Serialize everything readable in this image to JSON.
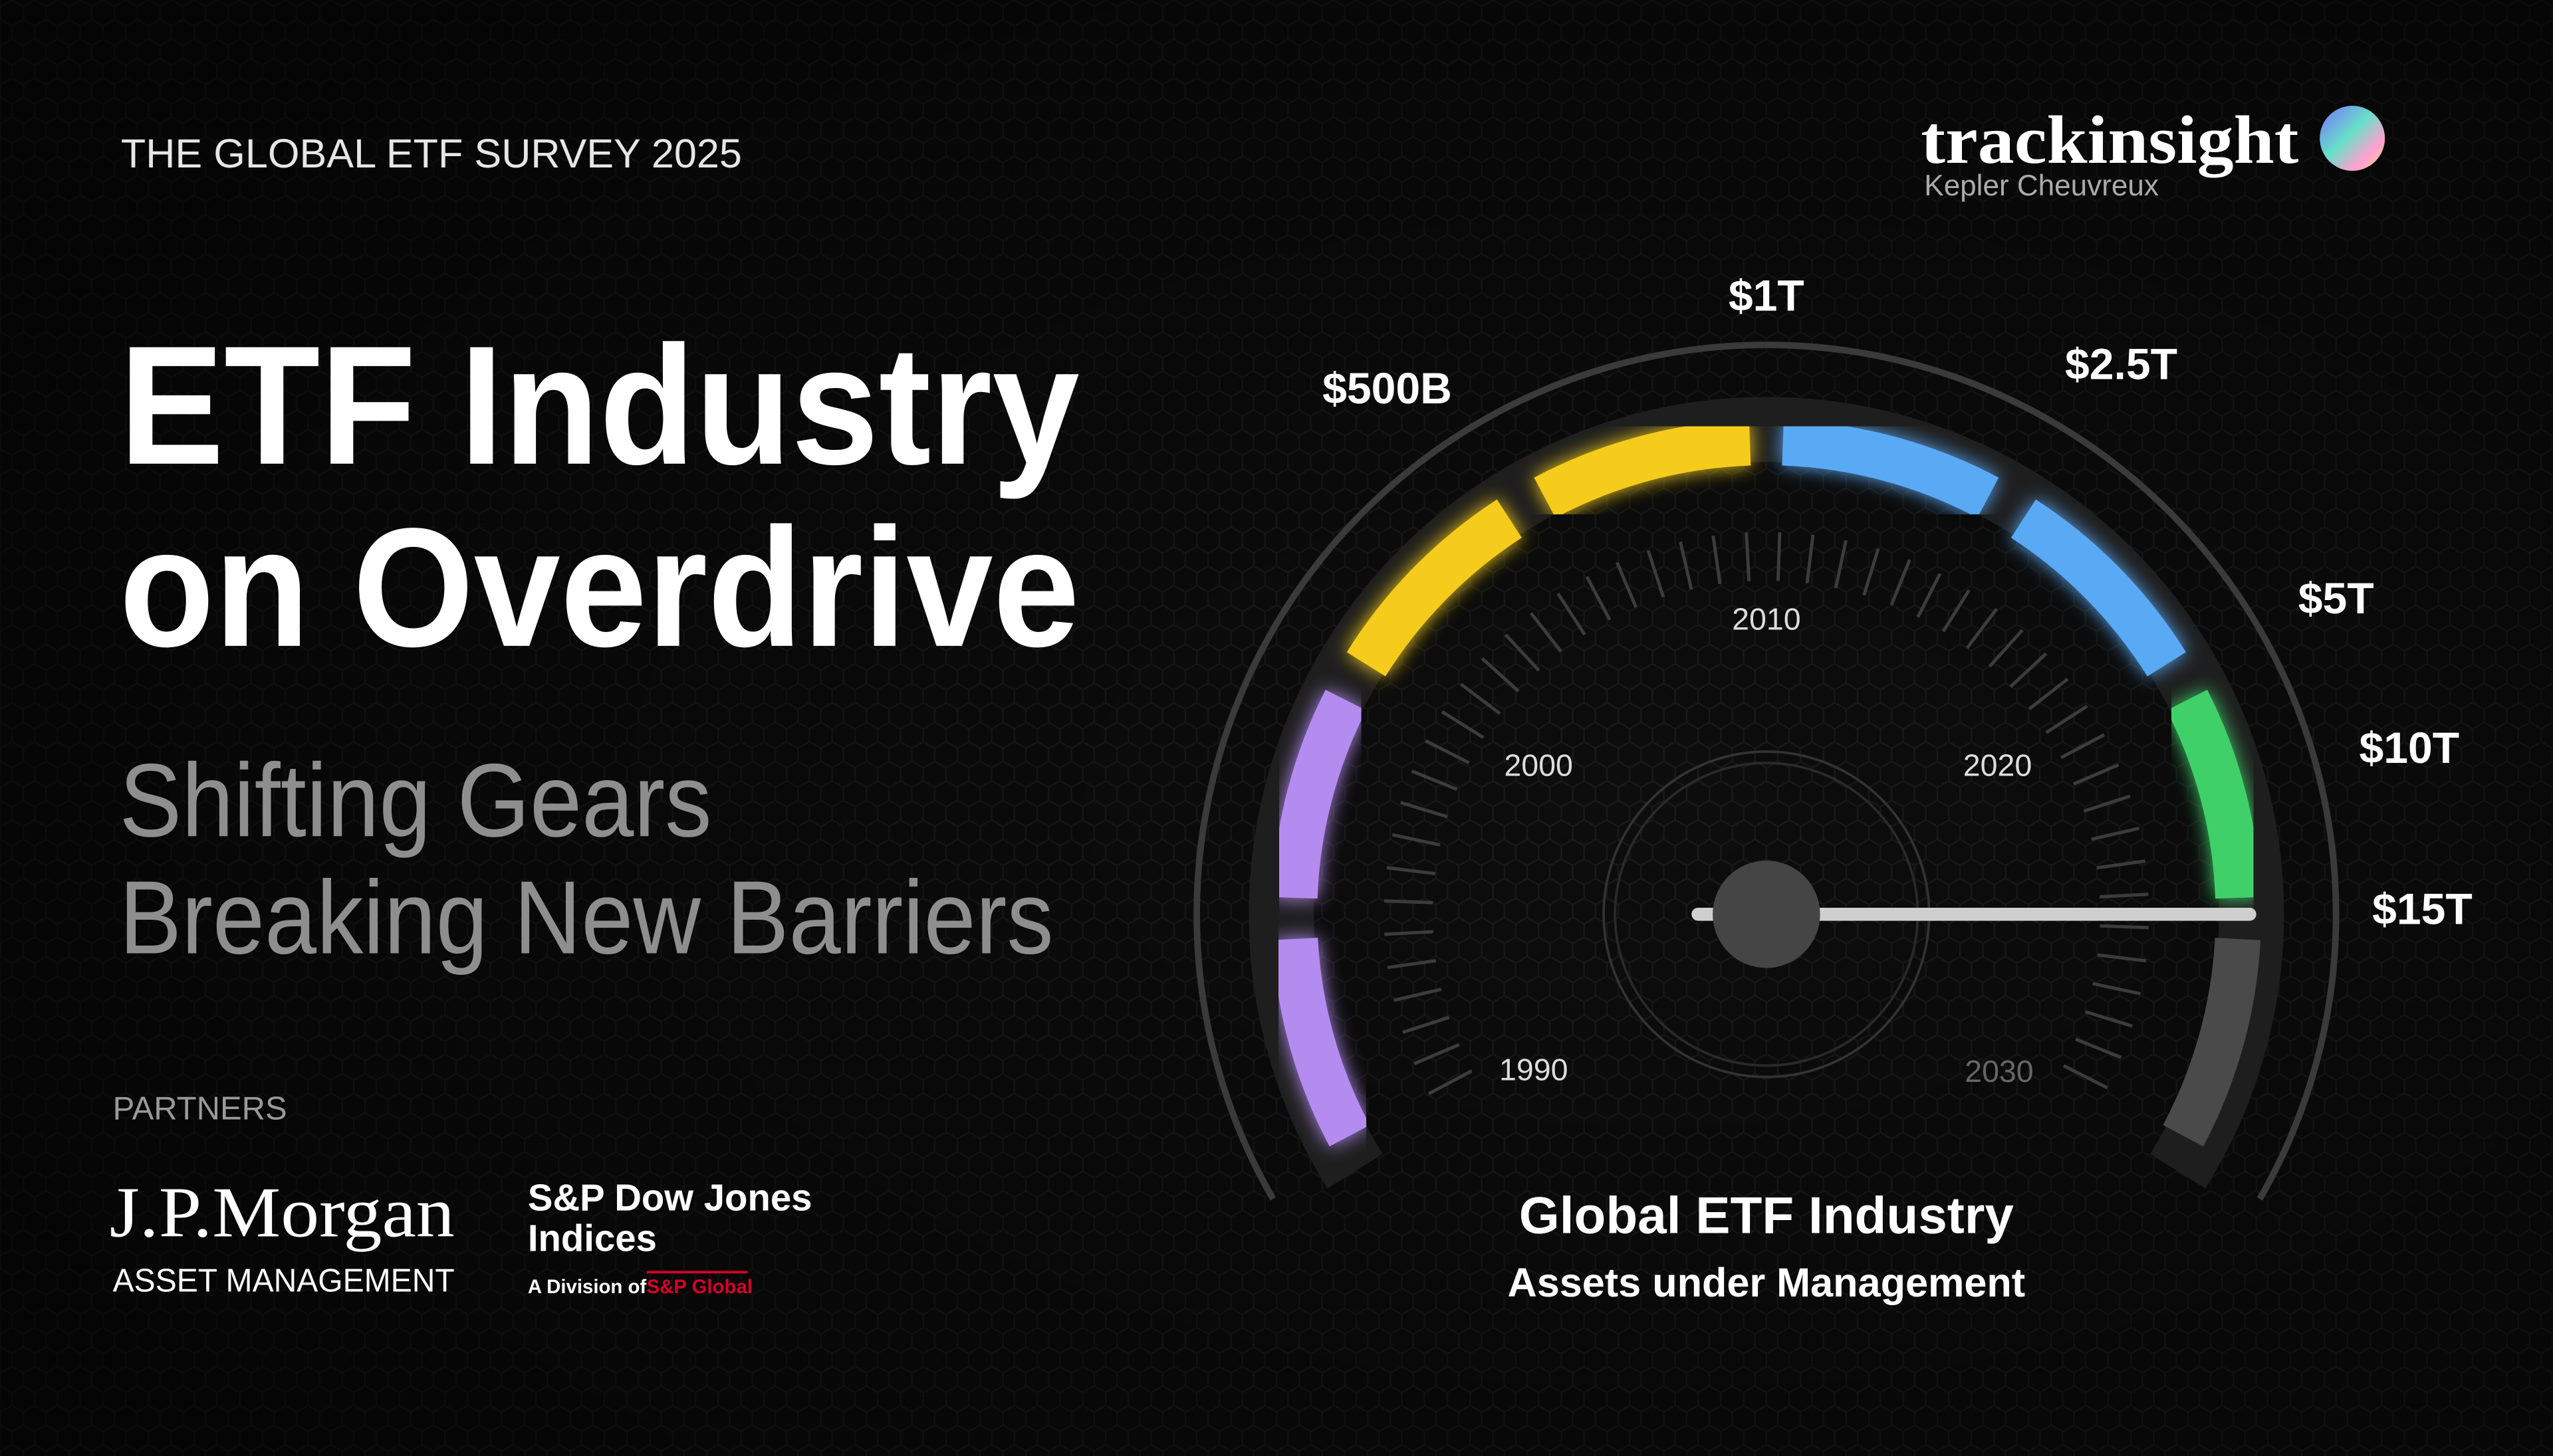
{
  "header": {
    "survey": "THE GLOBAL ETF SURVEY 2025",
    "brand": "trackinsight",
    "brand_sub": "Kepler Cheuvreux"
  },
  "title": {
    "line1": "ETF Industry",
    "line2": "on Overdrive"
  },
  "subtitle": {
    "line1": "Shifting Gears",
    "line2": "Breaking New Barriers"
  },
  "partners": {
    "label": "PARTNERS",
    "jpmorgan": "J.P.Morgan",
    "jpmorgan_sub": "ASSET MANAGEMENT",
    "spdji_line1": "S&P Dow Jones",
    "spdji_line2": "Indices",
    "spdji_division": "A Division of",
    "spglobal": "S&P Global"
  },
  "gauge": {
    "value_labels": [
      "$500B",
      "$1T",
      "$2.5T",
      "$5T",
      "$10T",
      "$15T"
    ],
    "years": [
      "1990",
      "2000",
      "2010",
      "2020",
      "2030"
    ],
    "caption_line1": "Global ETF Industry",
    "caption_line2": "Assets under Management"
  }
}
